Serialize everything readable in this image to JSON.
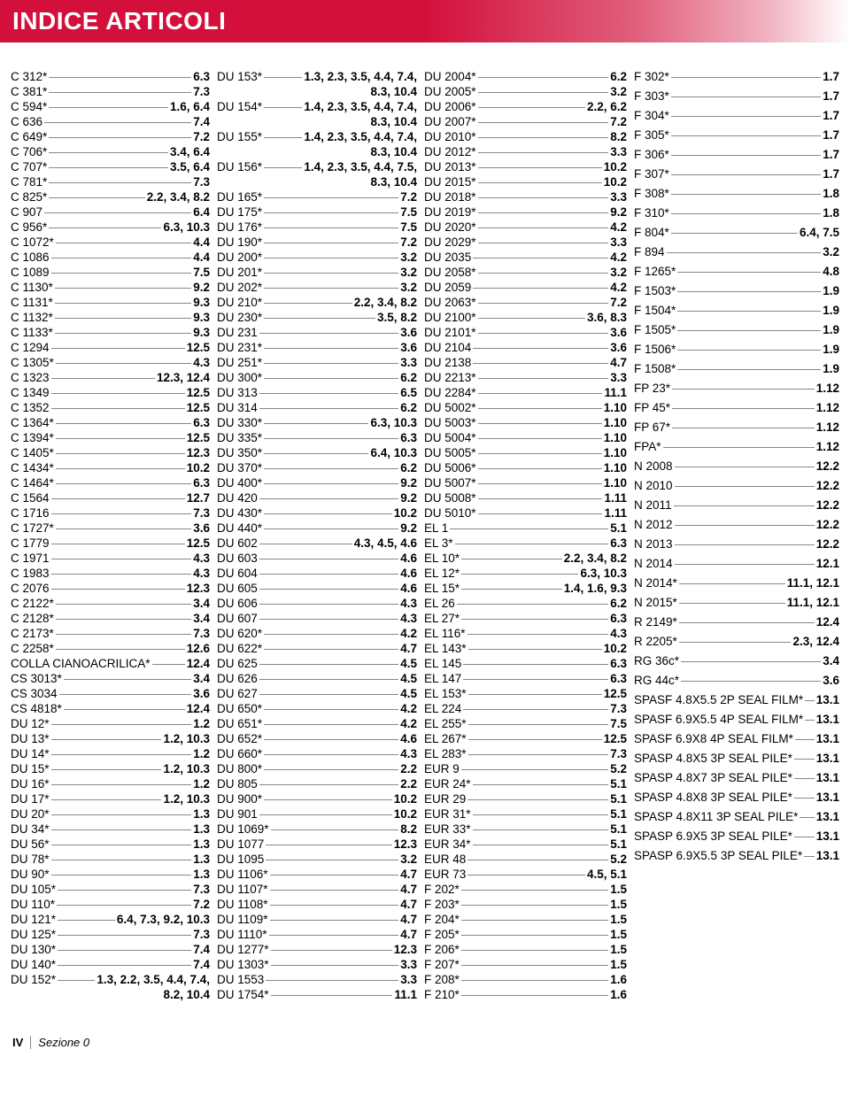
{
  "header": {
    "title": "INDICE ARTICOLI"
  },
  "footer": {
    "section_num": "IV",
    "section_label": "Sezione 0"
  },
  "columns": [
    [
      {
        "label": "C 312*",
        "page": "6.3"
      },
      {
        "label": "C 381*",
        "page": "7.3"
      },
      {
        "label": "C 594*",
        "page": "1.6, 6.4"
      },
      {
        "label": "C 636",
        "page": "7.4"
      },
      {
        "label": "C 649*",
        "page": "7.2"
      },
      {
        "label": "C 706*",
        "page": "3.4, 6.4"
      },
      {
        "label": "C 707*",
        "page": "3.5, 6.4"
      },
      {
        "label": "C 781*",
        "page": "7.3"
      },
      {
        "label": "C 825*",
        "page": "2.2, 3.4, 8.2"
      },
      {
        "label": "C 907",
        "page": "6.4"
      },
      {
        "label": "C 956*",
        "page": "6.3, 10.3"
      },
      {
        "label": "C 1072*",
        "page": "4.4"
      },
      {
        "label": "C 1086",
        "page": "4.4"
      },
      {
        "label": "C 1089",
        "page": "7.5"
      },
      {
        "label": "C 1130*",
        "page": "9.2"
      },
      {
        "label": "C 1131*",
        "page": "9.3"
      },
      {
        "label": "C 1132*",
        "page": "9.3"
      },
      {
        "label": "C 1133*",
        "page": "9.3"
      },
      {
        "label": "C 1294",
        "page": "12.5"
      },
      {
        "label": "C 1305*",
        "page": "4.3"
      },
      {
        "label": "C 1323",
        "page": "12.3, 12.4"
      },
      {
        "label": "C 1349",
        "page": "12.5"
      },
      {
        "label": "C 1352",
        "page": "12.5"
      },
      {
        "label": "C 1364*",
        "page": "6.3"
      },
      {
        "label": "C 1394*",
        "page": "12.5"
      },
      {
        "label": "C 1405*",
        "page": "12.3"
      },
      {
        "label": "C 1434*",
        "page": "10.2"
      },
      {
        "label": "C 1464*",
        "page": "6.3"
      },
      {
        "label": "C 1564",
        "page": "12.7"
      },
      {
        "label": "C 1716",
        "page": "7.3"
      },
      {
        "label": "C 1727*",
        "page": "3.6"
      },
      {
        "label": "C 1779",
        "page": "12.5"
      },
      {
        "label": "C 1971",
        "page": "4.3"
      },
      {
        "label": "C 1983",
        "page": "4.3"
      },
      {
        "label": "C 2076",
        "page": "12.3"
      },
      {
        "label": "C 2122*",
        "page": "3.4"
      },
      {
        "label": "C 2128*",
        "page": "3.4"
      },
      {
        "label": "C 2173*",
        "page": "7.3"
      },
      {
        "label": "C 2258*",
        "page": "12.6"
      },
      {
        "label": "COLLA CIANOACRILICA*",
        "page": "12.4"
      },
      {
        "label": "CS 3013*",
        "page": "3.4"
      },
      {
        "label": "CS 3034",
        "page": "3.6"
      },
      {
        "label": "CS 4818*",
        "page": "12.4"
      },
      {
        "label": "DU 12*",
        "page": "1.2"
      },
      {
        "label": "DU 13*",
        "page": "1.2, 10.3"
      },
      {
        "label": "DU 14*",
        "page": "1.2"
      },
      {
        "label": "DU 15*",
        "page": "1.2, 10.3"
      },
      {
        "label": "DU 16*",
        "page": "1.2"
      },
      {
        "label": "DU 17*",
        "page": "1.2, 10.3"
      },
      {
        "label": "DU 20*",
        "page": "1.3"
      },
      {
        "label": "DU 34*",
        "page": "1.3"
      },
      {
        "label": "DU 56*",
        "page": "1.3"
      },
      {
        "label": "DU 78*",
        "page": "1.3"
      },
      {
        "label": "DU 90*",
        "page": "1.3"
      },
      {
        "label": "DU 105*",
        "page": "7.3"
      },
      {
        "label": "DU 110*",
        "page": "7.2"
      },
      {
        "label": "DU 121*",
        "page": "6.4, 7.3, 9.2, 10.3"
      },
      {
        "label": "DU 125*",
        "page": "7.3"
      },
      {
        "label": "DU 130*",
        "page": "7.4"
      },
      {
        "label": "DU 140*",
        "page": "7.4"
      },
      {
        "label": "DU 152*",
        "page": "1.3, 2.2, 3.5, 4.4, 7.4,",
        "cont": "8.2, 10.4"
      }
    ],
    [
      {
        "label": "DU 153*",
        "page": "1.3, 2.3, 3.5, 4.4, 7.4,",
        "cont": "8.3, 10.4"
      },
      {
        "label": "DU 154*",
        "page": "1.4, 2.3, 3.5, 4.4, 7.4,",
        "cont": "8.3, 10.4"
      },
      {
        "label": "DU 155*",
        "page": "1.4, 2.3, 3.5, 4.4, 7.4,",
        "cont": "8.3, 10.4"
      },
      {
        "label": "DU 156*",
        "page": "1.4, 2.3, 3.5, 4.4, 7.5,",
        "cont": "8.3, 10.4"
      },
      {
        "label": "DU 165*",
        "page": "7.2"
      },
      {
        "label": "DU 175*",
        "page": "7.5"
      },
      {
        "label": "DU 176*",
        "page": "7.5"
      },
      {
        "label": "DU 190*",
        "page": "7.2"
      },
      {
        "label": "DU 200*",
        "page": "3.2"
      },
      {
        "label": "DU 201*",
        "page": "3.2"
      },
      {
        "label": "DU 202*",
        "page": "3.2"
      },
      {
        "label": "DU 210*",
        "page": "2.2, 3.4, 8.2"
      },
      {
        "label": "DU 230*",
        "page": "3.5, 8.2"
      },
      {
        "label": "DU 231",
        "page": "3.6"
      },
      {
        "label": "DU 231*",
        "page": "3.6"
      },
      {
        "label": "DU 251*",
        "page": "3.3"
      },
      {
        "label": "DU 300*",
        "page": "6.2"
      },
      {
        "label": "DU 313",
        "page": "6.5"
      },
      {
        "label": "DU 314",
        "page": "6.2"
      },
      {
        "label": "DU 330*",
        "page": "6.3, 10.3"
      },
      {
        "label": "DU 335*",
        "page": "6.3"
      },
      {
        "label": "DU 350*",
        "page": "6.4, 10.3"
      },
      {
        "label": "DU 370*",
        "page": "6.2"
      },
      {
        "label": "DU 400*",
        "page": "9.2"
      },
      {
        "label": "DU 420",
        "page": "9.2"
      },
      {
        "label": "DU 430*",
        "page": "10.2"
      },
      {
        "label": "DU 440*",
        "page": "9.2"
      },
      {
        "label": "DU 602",
        "page": "4.3, 4.5, 4.6"
      },
      {
        "label": "DU 603",
        "page": "4.6"
      },
      {
        "label": "DU 604",
        "page": "4.6"
      },
      {
        "label": "DU 605",
        "page": "4.6"
      },
      {
        "label": "DU 606",
        "page": "4.3"
      },
      {
        "label": "DU 607",
        "page": "4.3"
      },
      {
        "label": "DU 620*",
        "page": "4.2"
      },
      {
        "label": "DU 622*",
        "page": "4.7"
      },
      {
        "label": "DU 625",
        "page": "4.5"
      },
      {
        "label": "DU 626",
        "page": "4.5"
      },
      {
        "label": "DU 627",
        "page": "4.5"
      },
      {
        "label": "DU 650*",
        "page": "4.2"
      },
      {
        "label": "DU 651*",
        "page": "4.2"
      },
      {
        "label": "DU 652*",
        "page": "4.6"
      },
      {
        "label": "DU 660*",
        "page": "4.3"
      },
      {
        "label": "DU 800*",
        "page": "2.2"
      },
      {
        "label": "DU 805",
        "page": "2.2"
      },
      {
        "label": "DU 900*",
        "page": "10.2"
      },
      {
        "label": "DU 901",
        "page": "10.2"
      },
      {
        "label": "DU 1069*",
        "page": "8.2"
      },
      {
        "label": "DU 1077",
        "page": "12.3"
      },
      {
        "label": "DU 1095",
        "page": "3.2"
      },
      {
        "label": "DU 1106*",
        "page": "4.7"
      },
      {
        "label": "DU 1107*",
        "page": "4.7"
      },
      {
        "label": "DU 1108*",
        "page": "4.7"
      },
      {
        "label": "DU 1109*",
        "page": "4.7"
      },
      {
        "label": "DU 1110*",
        "page": "4.7"
      },
      {
        "label": "DU 1277*",
        "page": "12.3"
      },
      {
        "label": "DU 1303*",
        "page": "3.3"
      },
      {
        "label": "DU 1553",
        "page": "3.3"
      },
      {
        "label": "DU 1754*",
        "page": "11.1"
      }
    ],
    [
      {
        "label": "DU 2004*",
        "page": "6.2"
      },
      {
        "label": "DU 2005*",
        "page": "3.2"
      },
      {
        "label": "DU 2006*",
        "page": "2.2, 6.2"
      },
      {
        "label": "DU 2007*",
        "page": "7.2"
      },
      {
        "label": "DU 2010*",
        "page": "8.2"
      },
      {
        "label": "DU 2012*",
        "page": "3.3"
      },
      {
        "label": "DU 2013*",
        "page": "10.2"
      },
      {
        "label": "DU 2015*",
        "page": "10.2"
      },
      {
        "label": "DU 2018*",
        "page": "3.3"
      },
      {
        "label": "DU 2019*",
        "page": "9.2"
      },
      {
        "label": "DU 2020*",
        "page": "4.2"
      },
      {
        "label": "DU 2029*",
        "page": "3.3"
      },
      {
        "label": "DU 2035",
        "page": "4.2"
      },
      {
        "label": "DU 2058*",
        "page": "3.2"
      },
      {
        "label": "DU 2059",
        "page": "4.2"
      },
      {
        "label": "DU 2063*",
        "page": "7.2"
      },
      {
        "label": "DU 2100*",
        "page": "3.6, 8.3"
      },
      {
        "label": "DU 2101*",
        "page": "3.6"
      },
      {
        "label": "DU 2104",
        "page": "3.6"
      },
      {
        "label": "DU 2138",
        "page": "4.7"
      },
      {
        "label": "DU 2213*",
        "page": "3.3"
      },
      {
        "label": "DU 2284*",
        "page": "11.1"
      },
      {
        "label": "DU 5002*",
        "page": "1.10"
      },
      {
        "label": "DU 5003*",
        "page": "1.10"
      },
      {
        "label": "DU 5004*",
        "page": "1.10"
      },
      {
        "label": "DU 5005*",
        "page": "1.10"
      },
      {
        "label": "DU 5006*",
        "page": "1.10"
      },
      {
        "label": "DU 5007*",
        "page": "1.10"
      },
      {
        "label": "DU 5008*",
        "page": "1.11"
      },
      {
        "label": "DU 5010*",
        "page": "1.11"
      },
      {
        "label": "EL 1",
        "page": "5.1"
      },
      {
        "label": "EL 3*",
        "page": "6.3"
      },
      {
        "label": "EL 10*",
        "page": "2.2, 3.4, 8.2"
      },
      {
        "label": "EL 12*",
        "page": "6.3, 10.3"
      },
      {
        "label": "EL 15*",
        "page": "1.4, 1.6, 9.3"
      },
      {
        "label": "EL 26",
        "page": "6.2"
      },
      {
        "label": "EL 27*",
        "page": "6.3"
      },
      {
        "label": "EL 116*",
        "page": "4.3"
      },
      {
        "label": "EL 143*",
        "page": "10.2"
      },
      {
        "label": "EL 145",
        "page": "6.3"
      },
      {
        "label": "EL 147",
        "page": "6.3"
      },
      {
        "label": "EL 153*",
        "page": "12.5"
      },
      {
        "label": "EL 224",
        "page": "7.3"
      },
      {
        "label": "EL 255*",
        "page": "7.5"
      },
      {
        "label": "EL 267*",
        "page": "12.5"
      },
      {
        "label": "EL 283*",
        "page": "7.3"
      },
      {
        "label": "EUR 9",
        "page": "5.2"
      },
      {
        "label": "EUR 24*",
        "page": "5.1"
      },
      {
        "label": "EUR 29",
        "page": "5.1"
      },
      {
        "label": "EUR 31*",
        "page": "5.1"
      },
      {
        "label": "EUR 33*",
        "page": "5.1"
      },
      {
        "label": "EUR 34*",
        "page": "5.1"
      },
      {
        "label": "EUR 48",
        "page": "5.2"
      },
      {
        "label": "EUR 73",
        "page": "4.5, 5.1"
      },
      {
        "label": "F 202*",
        "page": "1.5"
      },
      {
        "label": "F 203*",
        "page": "1.5"
      },
      {
        "label": "F 204*",
        "page": "1.5"
      },
      {
        "label": "F 205*",
        "page": "1.5"
      },
      {
        "label": "F 206*",
        "page": "1.5"
      },
      {
        "label": "F 207*",
        "page": "1.5"
      },
      {
        "label": "F 208*",
        "page": "1.6"
      },
      {
        "label": "F 210*",
        "page": "1.6"
      }
    ],
    [
      {
        "label": "F 302*",
        "page": "1.7"
      },
      {
        "label": "F 303*",
        "page": "1.7"
      },
      {
        "label": "F 304*",
        "page": "1.7"
      },
      {
        "label": "F 305*",
        "page": "1.7"
      },
      {
        "label": "F 306*",
        "page": "1.7"
      },
      {
        "label": "F 307*",
        "page": "1.7"
      },
      {
        "label": "F 308*",
        "page": "1.8"
      },
      {
        "label": "F 310*",
        "page": "1.8"
      },
      {
        "label": "F 804*",
        "page": "6.4, 7.5"
      },
      {
        "label": "F 894",
        "page": "3.2"
      },
      {
        "label": "F 1265*",
        "page": "4.8"
      },
      {
        "label": "F 1503*",
        "page": "1.9"
      },
      {
        "label": "F 1504*",
        "page": "1.9"
      },
      {
        "label": "F 1505*",
        "page": "1.9"
      },
      {
        "label": "F 1506*",
        "page": "1.9"
      },
      {
        "label": "F 1508*",
        "page": "1.9"
      },
      {
        "label": "FP 23*",
        "page": "1.12"
      },
      {
        "label": "FP 45*",
        "page": "1.12"
      },
      {
        "label": "FP 67*",
        "page": "1.12"
      },
      {
        "label": "FPA*",
        "page": "1.12"
      },
      {
        "label": "N 2008",
        "page": "12.2"
      },
      {
        "label": "N 2010",
        "page": "12.2"
      },
      {
        "label": "N 2011",
        "page": "12.2"
      },
      {
        "label": "N 2012",
        "page": "12.2"
      },
      {
        "label": "N 2013",
        "page": "12.2"
      },
      {
        "label": "N 2014",
        "page": "12.1"
      },
      {
        "label": "N 2014*",
        "page": "11.1, 12.1"
      },
      {
        "label": "N 2015*",
        "page": "11.1, 12.1"
      },
      {
        "label": "R 2149*",
        "page": "12.4"
      },
      {
        "label": "R 2205*",
        "page": "2.3, 12.4"
      },
      {
        "label": "RG 36c*",
        "page": "3.4"
      },
      {
        "label": "RG 44c*",
        "page": "3.6"
      },
      {
        "label": "SPASF 4.8X5.5 2P SEAL FILM*",
        "page": "13.1"
      },
      {
        "label": "SPASF 6.9X5.5 4P SEAL FILM*",
        "page": "13.1"
      },
      {
        "label": "SPASF 6.9X8 4P SEAL FILM*",
        "page": "13.1"
      },
      {
        "label": "SPASP 4.8X5 3P SEAL PILE*",
        "page": "13.1"
      },
      {
        "label": "SPASP 4.8X7 3P SEAL PILE*",
        "page": "13.1"
      },
      {
        "label": "SPASP 4.8X8 3P SEAL PILE*",
        "page": "13.1"
      },
      {
        "label": "SPASP 4.8X11 3P SEAL PILE*",
        "page": "13.1"
      },
      {
        "label": "SPASP 6.9X5 3P SEAL PILE*",
        "page": "13.1"
      },
      {
        "label": "SPASP 6.9X5.5 3P SEAL PILE*",
        "page": "13.1"
      }
    ]
  ]
}
